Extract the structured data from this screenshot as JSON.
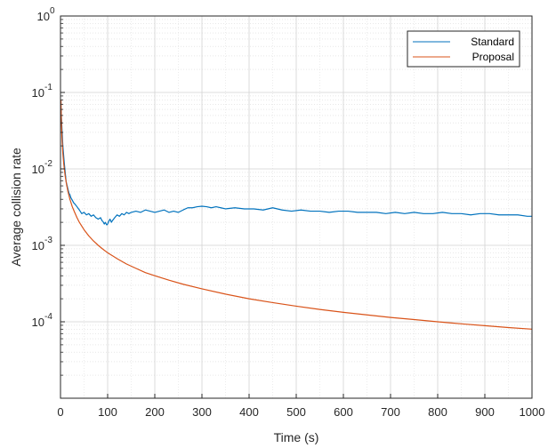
{
  "chart_data": {
    "type": "line",
    "xlabel": "Time (s)",
    "ylabel": "Average collision rate",
    "xlim": [
      0,
      1000
    ],
    "ylim": [
      1e-05,
      1
    ],
    "y_scale": "log",
    "grid": true,
    "minor_grid": true,
    "legend_position": "top-right",
    "x_ticks": [
      0,
      100,
      200,
      300,
      400,
      500,
      600,
      700,
      800,
      900,
      1000
    ],
    "y_ticks": [
      {
        "value": 0.0001,
        "base": "10",
        "exp": "-4"
      },
      {
        "value": 0.001,
        "base": "10",
        "exp": "-3"
      },
      {
        "value": 0.01,
        "base": "10",
        "exp": "-2"
      },
      {
        "value": 0.1,
        "base": "10",
        "exp": "-1"
      },
      {
        "value": 1,
        "base": "10",
        "exp": "0"
      }
    ],
    "series": [
      {
        "name": "Standard",
        "color": "#0072BD",
        "x": [
          1,
          3,
          5,
          8,
          10,
          12,
          15,
          18,
          20,
          22,
          25,
          28,
          30,
          35,
          40,
          45,
          50,
          55,
          60,
          65,
          70,
          75,
          80,
          85,
          88,
          90,
          93,
          95,
          98,
          100,
          103,
          105,
          108,
          110,
          115,
          120,
          125,
          130,
          135,
          140,
          145,
          150,
          160,
          170,
          180,
          190,
          200,
          210,
          220,
          230,
          240,
          250,
          260,
          270,
          280,
          290,
          300,
          310,
          320,
          330,
          340,
          350,
          370,
          390,
          410,
          430,
          450,
          470,
          490,
          510,
          530,
          550,
          570,
          590,
          610,
          630,
          650,
          670,
          690,
          710,
          730,
          750,
          770,
          790,
          810,
          830,
          850,
          870,
          890,
          910,
          930,
          950,
          970,
          990,
          1000
        ],
        "values": [
          0.06,
          0.035,
          0.02,
          0.012,
          0.009,
          0.0068,
          0.0057,
          0.0048,
          0.0046,
          0.0042,
          0.0039,
          0.0036,
          0.0035,
          0.0032,
          0.0029,
          0.0026,
          0.0027,
          0.0025,
          0.0026,
          0.0024,
          0.0025,
          0.0023,
          0.0022,
          0.0023,
          0.0021,
          0.00205,
          0.0019,
          0.002,
          0.00185,
          0.0019,
          0.0021,
          0.0022,
          0.002,
          0.0021,
          0.0023,
          0.0025,
          0.0024,
          0.0026,
          0.0025,
          0.0027,
          0.0026,
          0.0027,
          0.0028,
          0.0027,
          0.0029,
          0.0028,
          0.0027,
          0.0028,
          0.0029,
          0.0027,
          0.0028,
          0.0027,
          0.0029,
          0.0031,
          0.0031,
          0.0032,
          0.00325,
          0.0032,
          0.0031,
          0.0032,
          0.0031,
          0.003,
          0.0031,
          0.003,
          0.003,
          0.0029,
          0.0031,
          0.0029,
          0.0028,
          0.0029,
          0.0028,
          0.0028,
          0.0027,
          0.0028,
          0.0028,
          0.0027,
          0.0027,
          0.0027,
          0.0026,
          0.0027,
          0.0026,
          0.0027,
          0.0026,
          0.0026,
          0.0027,
          0.0026,
          0.0026,
          0.0025,
          0.0026,
          0.0026,
          0.0025,
          0.0025,
          0.0025,
          0.0024,
          0.0024
        ]
      },
      {
        "name": "Proposal",
        "color": "#D95319",
        "x": [
          1,
          2,
          3,
          5,
          7,
          10,
          13,
          16,
          20,
          25,
          30,
          35,
          40,
          50,
          60,
          70,
          80,
          90,
          100,
          120,
          140,
          160,
          180,
          200,
          230,
          260,
          300,
          350,
          400,
          450,
          500,
          550,
          600,
          650,
          700,
          750,
          800,
          850,
          900,
          950,
          1000
        ],
        "values": [
          0.08,
          0.04,
          0.027,
          0.016,
          0.0115,
          0.008,
          0.0062,
          0.005,
          0.004,
          0.0032,
          0.0027,
          0.0023,
          0.002,
          0.0016,
          0.00133,
          0.00114,
          0.001,
          0.00089,
          0.0008,
          0.00067,
          0.00057,
          0.0005,
          0.00044,
          0.0004,
          0.00035,
          0.00031,
          0.00027,
          0.00023,
          0.0002,
          0.000178,
          0.00016,
          0.000145,
          0.000133,
          0.000123,
          0.000114,
          0.000107,
          0.0001,
          9.4e-05,
          8.9e-05,
          8.4e-05,
          8e-05
        ]
      }
    ]
  }
}
